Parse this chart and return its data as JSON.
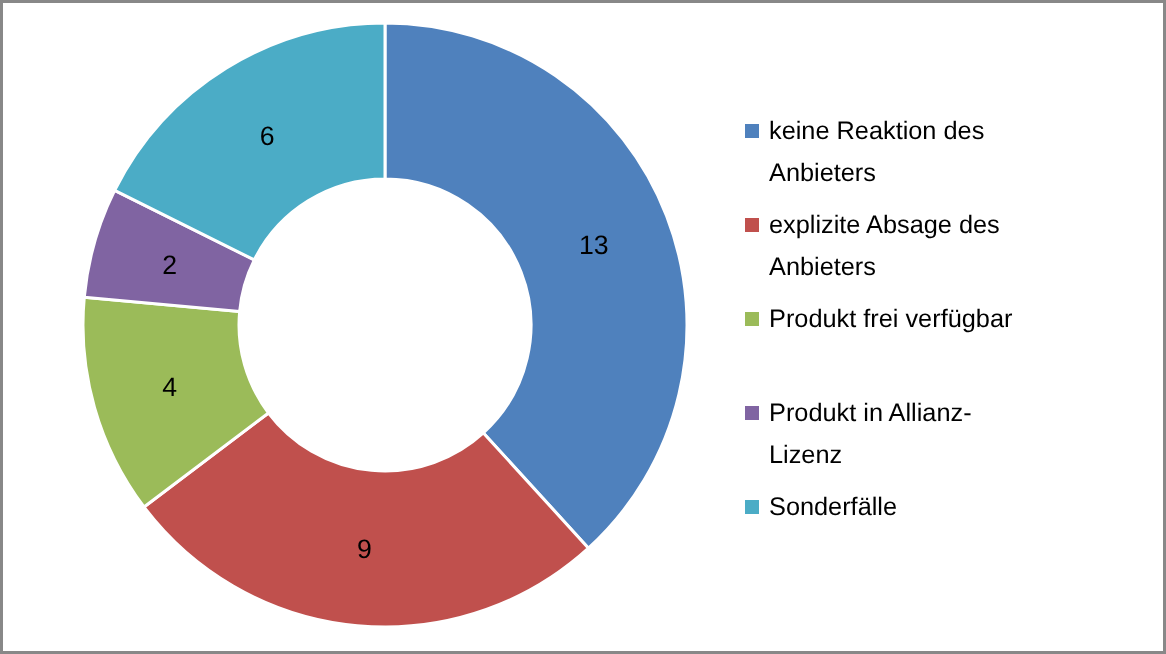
{
  "chart_data": {
    "type": "donut",
    "categories": [
      "keine Reaktion des Anbieters",
      "explizite Absage des Anbieters",
      "Produkt frei verfügbar",
      "Produkt in Allianz-Lizenz",
      "Sonderfälle"
    ],
    "values": [
      13,
      9,
      4,
      2,
      6
    ],
    "colors": [
      "#4f81bd",
      "#c0504d",
      "#9bbb59",
      "#8064a2",
      "#4bacc6"
    ],
    "data_labels": true,
    "legend": "right"
  }
}
